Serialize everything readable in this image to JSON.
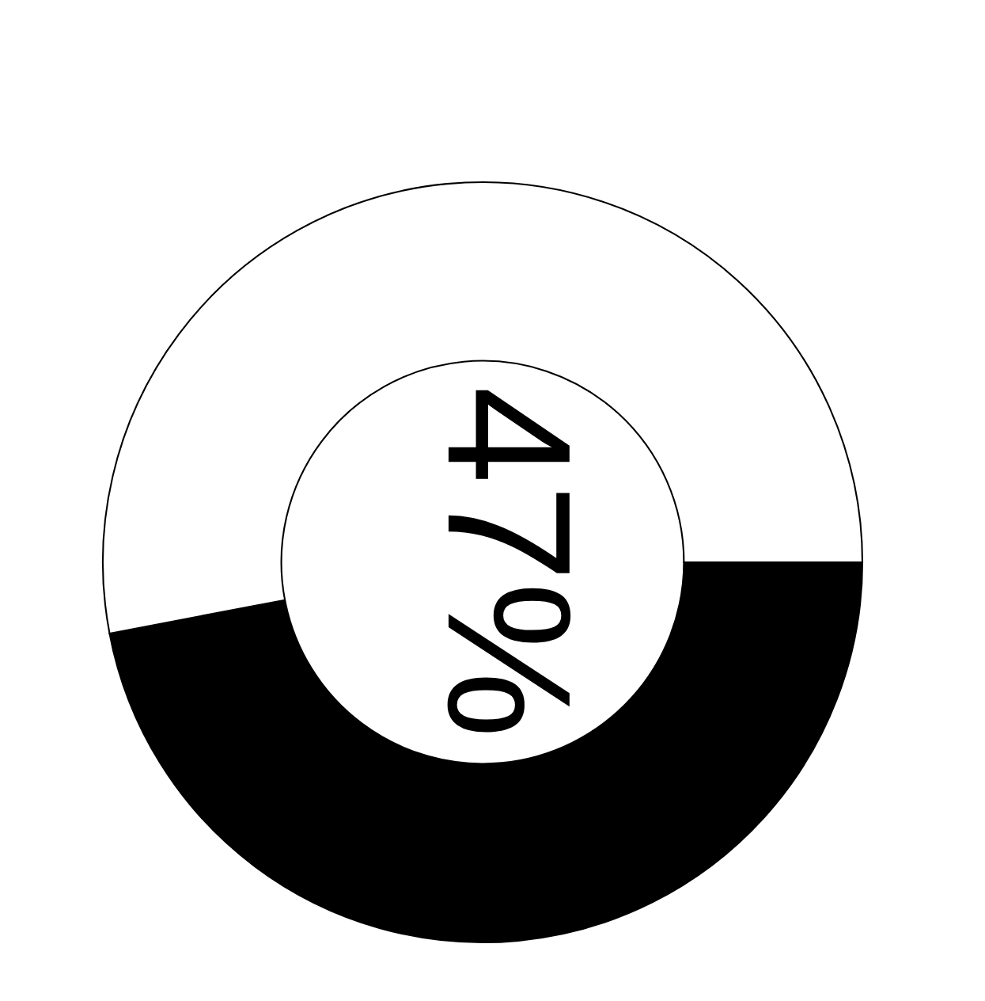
{
  "chart_data": {
    "type": "donut",
    "categories": [
      null,
      null
    ],
    "values": [
      47,
      53
    ],
    "colors": [
      "#000000",
      "#ffffff"
    ],
    "annotations": [
      "47%"
    ]
  }
}
